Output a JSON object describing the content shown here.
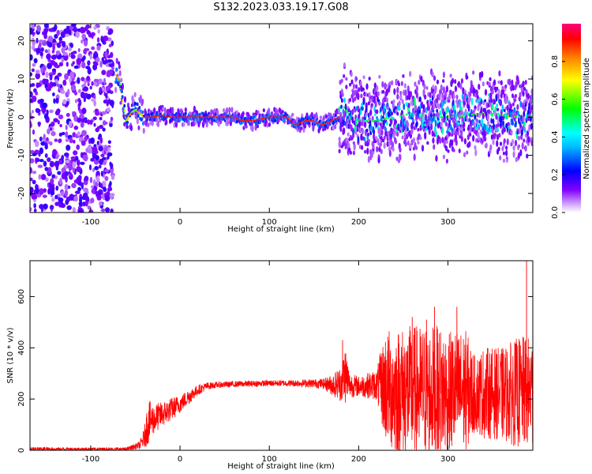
{
  "title": "S132.2023.033.19.17.G08",
  "chart_data": [
    {
      "type": "heatmap",
      "xlabel": "Height of straight line (km)",
      "ylabel": "Frequency (Hz)",
      "xlim": [
        -168,
        395
      ],
      "ylim": [
        -25,
        24.5
      ],
      "xticks": [
        -100,
        0,
        100,
        200,
        300
      ],
      "yticks": [
        -20,
        -10,
        0,
        10,
        20
      ],
      "colorbar": {
        "label": "Normalized spectral amplitude",
        "range": [
          0,
          1
        ],
        "ticks": [
          "0.0",
          "0.2",
          "0.4",
          "0.6",
          "0.8"
        ],
        "colors": [
          "#ffffff",
          "#cc99ff",
          "#8000ff",
          "#0000ff",
          "#00bfff",
          "#00ffff",
          "#00ff00",
          "#ffff00",
          "#ff8000",
          "#ff0000",
          "#ff0080"
        ]
      },
      "ridge": {
        "x": [
          -72,
          -68,
          -64,
          -60,
          -55,
          -50,
          -45,
          -40,
          -30,
          -20,
          -10,
          0,
          20,
          40,
          60,
          70,
          80,
          90,
          100,
          110,
          120,
          130,
          140,
          150,
          160,
          170,
          178,
          182,
          190,
          200,
          220,
          240,
          260,
          280,
          300,
          320,
          340,
          360,
          380,
          395
        ],
        "y": [
          11,
          10,
          4,
          -1,
          1,
          2,
          1,
          0,
          0,
          0.5,
          0,
          0,
          0,
          0,
          0,
          -1,
          -1,
          -0.5,
          0,
          0,
          0,
          -2,
          -1,
          -1,
          -2,
          -1,
          0,
          3,
          0.5,
          -1,
          -1,
          0,
          1,
          0,
          0,
          0.5,
          1,
          0.5,
          0,
          0.5
        ]
      },
      "noise_region_x": [
        -168,
        -75
      ],
      "grid": false,
      "legend": "none"
    },
    {
      "type": "line",
      "xlabel": "Height of straight line (km)",
      "ylabel": "SNR (10 * v/v)",
      "xlim": [
        -168,
        395
      ],
      "ylim": [
        0,
        740
      ],
      "xticks": [
        -100,
        0,
        100,
        200,
        300
      ],
      "yticks": [
        0,
        200,
        400,
        600
      ],
      "color": "#ff0000",
      "envelope": {
        "x": [
          -168,
          -120,
          -60,
          -45,
          -40,
          -36,
          -30,
          -20,
          -10,
          0,
          10,
          20,
          30,
          40,
          60,
          80,
          100,
          120,
          140,
          160,
          170,
          180,
          185,
          190,
          200,
          220,
          230,
          240,
          260,
          280,
          300,
          320,
          330,
          340,
          360,
          380,
          395
        ],
        "center": [
          5,
          5,
          5,
          20,
          50,
          110,
          120,
          140,
          160,
          180,
          210,
          235,
          250,
          255,
          258,
          260,
          262,
          262,
          262,
          260,
          255,
          260,
          300,
          255,
          250,
          255,
          250,
          230,
          230,
          230,
          230,
          230,
          220,
          225,
          220,
          225,
          225
        ],
        "spread": [
          8,
          6,
          6,
          15,
          40,
          90,
          60,
          50,
          45,
          35,
          30,
          20,
          15,
          12,
          12,
          12,
          12,
          12,
          15,
          20,
          40,
          70,
          120,
          50,
          40,
          60,
          220,
          250,
          260,
          260,
          250,
          240,
          150,
          180,
          180,
          220,
          220
        ]
      },
      "peaks": [
        {
          "x": 182,
          "y": 430
        },
        {
          "x": 260,
          "y": 520
        },
        {
          "x": 276,
          "y": 510
        },
        {
          "x": 285,
          "y": 560
        },
        {
          "x": 310,
          "y": 560
        },
        {
          "x": 388,
          "y": 740
        }
      ],
      "grid": false,
      "legend": "none"
    }
  ]
}
